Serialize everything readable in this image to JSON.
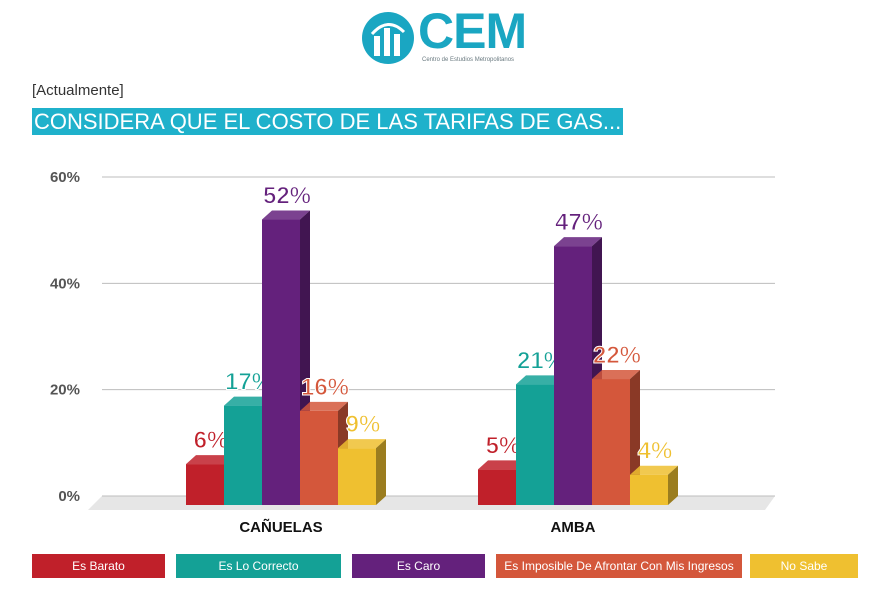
{
  "header": {
    "logo_text": "CEM",
    "logo_subtext": "Centro de Estudios Metropolitanos",
    "tag": "[Actualmente]",
    "title": "CONSIDERA QUE EL COSTO DE LAS TARIFAS DE GAS..."
  },
  "chart_data": {
    "type": "bar",
    "categories": [
      "CAÑUELAS",
      "AMBA"
    ],
    "series": [
      {
        "name": "Es Barato",
        "color": "#c0202a",
        "values": [
          6,
          5
        ]
      },
      {
        "name": "Es Lo Correcto",
        "color": "#14a196",
        "values": [
          17,
          21
        ]
      },
      {
        "name": "Es Caro",
        "color": "#64217c",
        "values": [
          52,
          47
        ]
      },
      {
        "name": "Es Imposible De Afrontar Con Mis Ingresos",
        "color": "#d4573b",
        "values": [
          16,
          22
        ]
      },
      {
        "name": "No Sabe",
        "color": "#efc030",
        "values": [
          9,
          4
        ]
      }
    ],
    "ylim": [
      0,
      60
    ],
    "yticks": [
      "0%",
      "20%",
      "40%",
      "60%"
    ],
    "value_suffix": "%",
    "legend_position": "bottom",
    "grid": true
  }
}
